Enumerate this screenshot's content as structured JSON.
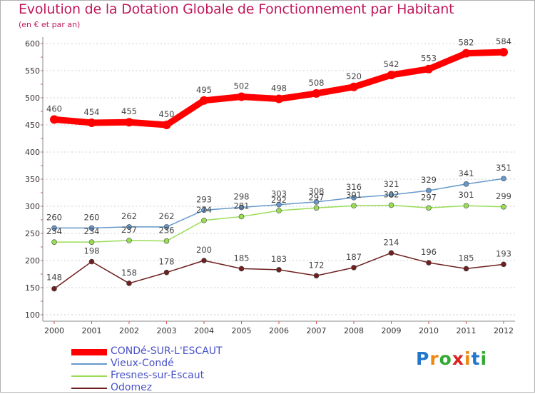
{
  "chart_data": {
    "type": "line",
    "title": "Evolution de la Dotation Globale de Fonctionnement par Habitant",
    "subtitle": "(en € et par an)",
    "categories": [
      "2000",
      "2001",
      "2002",
      "2003",
      "2004",
      "2005",
      "2006",
      "2007",
      "2008",
      "2009",
      "2010",
      "2011",
      "2012"
    ],
    "ylim": [
      100,
      600
    ],
    "yticks": [
      100,
      150,
      200,
      250,
      300,
      350,
      400,
      450,
      500,
      550,
      600
    ],
    "grid": "horizontal-dashed",
    "series": [
      {
        "name": "CONDé-SUR-L'ESCAUT",
        "color": "#ff0000",
        "values": [
          460,
          454,
          455,
          450,
          495,
          502,
          498,
          508,
          520,
          542,
          553,
          582,
          584
        ]
      },
      {
        "name": "Vieux-Condé",
        "color": "#6699cc",
        "values": [
          260,
          260,
          262,
          262,
          293,
          298,
          303,
          308,
          316,
          321,
          329,
          341,
          351
        ]
      },
      {
        "name": "Fresnes-sur-Escaut",
        "color": "#99dd55",
        "values": [
          234,
          234,
          237,
          236,
          274,
          281,
          292,
          297,
          301,
          302,
          297,
          301,
          299
        ]
      },
      {
        "name": "Odomez",
        "color": "#6e1f1f",
        "values": [
          148,
          198,
          158,
          178,
          200,
          185,
          183,
          172,
          187,
          214,
          196,
          185,
          193
        ]
      }
    ]
  },
  "logo": {
    "letters": [
      "P",
      "r",
      "o",
      "x",
      "i",
      "t",
      "i"
    ],
    "colors": [
      "#2277cc",
      "#ee8811",
      "#33aa33",
      "#dd2222",
      "#ee8811",
      "#2277cc",
      "#33aa33"
    ]
  }
}
